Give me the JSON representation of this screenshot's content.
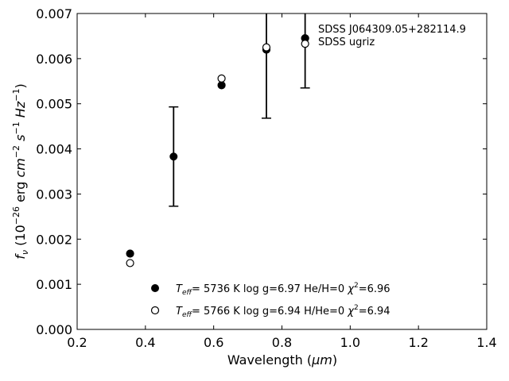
{
  "chart_data": {
    "type": "scatter",
    "xlabel": "Wavelength (",
    "xlabel_unit": "μm",
    "xlabel_close": ")",
    "ylabel_parts": {
      "f": "f",
      "nu": "ν",
      "open": " (10",
      "exp_m26": "−26",
      "erg": " erg ",
      "cm": "cm",
      "exp_m2": "−2",
      "s": "s",
      "exp_m1a": "−1",
      "hz": "Hz",
      "exp_m1b": "−1",
      "close": ")"
    },
    "xlim": [
      0.2,
      1.4
    ],
    "ylim": [
      0.0,
      0.007
    ],
    "xticks": [
      0.2,
      0.4,
      0.6,
      0.8,
      1.0,
      1.2,
      1.4
    ],
    "xtick_labels": [
      "0.2",
      "0.4",
      "0.6",
      "0.8",
      "1.0",
      "1.2",
      "1.4"
    ],
    "yticks": [
      0.0,
      0.001,
      0.002,
      0.003,
      0.004,
      0.005,
      0.006,
      0.007
    ],
    "ytick_labels": [
      "0.000",
      "0.001",
      "0.002",
      "0.003",
      "0.004",
      "0.005",
      "0.006",
      "0.007"
    ],
    "grid": false,
    "tick_direction": "in",
    "mirror_ticks": true,
    "annotation_lines": [
      "SDSS J064309.05+282114.9",
      "SDSS ugriz"
    ],
    "annotation_placement": "top-right",
    "legend_placement": "bottom-center",
    "observed": {
      "x": [
        0.4826,
        0.7545,
        0.8679
      ],
      "y": [
        0.00383,
        0.0062,
        0.00645
      ],
      "yerr": [
        0.0011,
        0.00152,
        0.0011
      ]
    },
    "series": [
      {
        "name": "filled",
        "marker": "filled-circle",
        "x": [
          0.3551,
          0.6231,
          0.7545,
          0.8679
        ],
        "y": [
          0.00168,
          0.00541,
          0.0062,
          0.00645
        ],
        "legend": {
          "teff_T": "T",
          "teff_sub": "eff",
          "text1": "=  5736 K  log g=6.97  He/H=0  ",
          "chi": "χ",
          "chi_sup": "2",
          "chi_val": "=6.96"
        }
      },
      {
        "name": "open",
        "marker": "open-circle",
        "x": [
          0.3551,
          0.6231,
          0.7545,
          0.8679
        ],
        "y": [
          0.00147,
          0.00556,
          0.00625,
          0.00633
        ],
        "legend": {
          "teff_T": "T",
          "teff_sub": "eff",
          "text1": "=  5766 K  log g=6.94  H/He=0  ",
          "chi": "χ",
          "chi_sup": "2",
          "chi_val": "=6.94"
        }
      }
    ],
    "colors": {
      "axis": "#000000",
      "marker": "#000000",
      "background": "#ffffff"
    }
  }
}
